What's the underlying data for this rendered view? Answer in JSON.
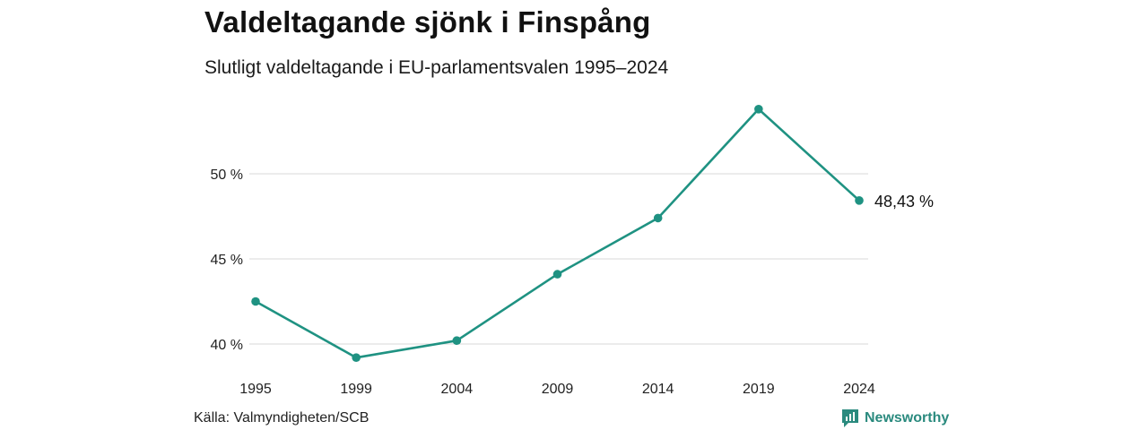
{
  "chart_data": {
    "type": "line",
    "title": "Valdeltagande sjönk i Finspång",
    "subtitle": "Slutligt valdeltagande i EU-parlamentsvalen 1995–2024",
    "x": [
      "1995",
      "1999",
      "2004",
      "2009",
      "2014",
      "2019",
      "2024"
    ],
    "series": [
      {
        "values": [
          42.5,
          39.2,
          40.2,
          44.1,
          47.4,
          53.8,
          48.43
        ]
      }
    ],
    "yticks": [
      40,
      45,
      50
    ],
    "ytick_labels": [
      "40 %",
      "45 %",
      "50 %"
    ],
    "ylim": [
      38,
      55
    ],
    "grid": true,
    "end_label": "48,43 %",
    "color": "#1f9282",
    "source": "Källa: Valmyndigheten/SCB",
    "brand": "Newsworthy"
  }
}
